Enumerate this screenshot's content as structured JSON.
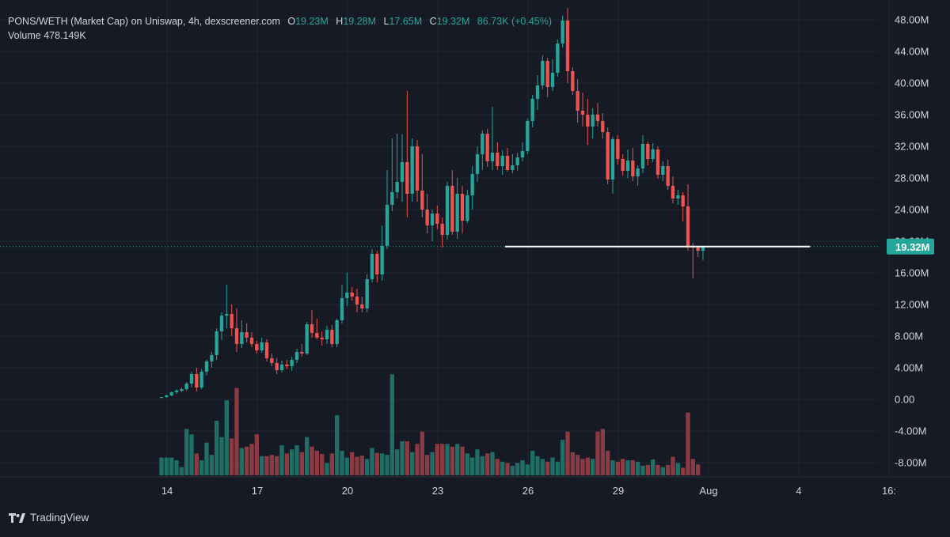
{
  "legend": {
    "symbol": "PONS/WETH (Market Cap) on Uniswap, 4h, dexscreener.com",
    "o_label": "O",
    "o_value": "19.23M",
    "h_label": "H",
    "h_value": "19.28M",
    "l_label": "L",
    "l_value": "17.65M",
    "c_label": "C",
    "c_value": "19.32M",
    "change": "86.73K (+0.45%)",
    "volume_label": "Volume",
    "volume_value": "478.149K"
  },
  "brand": {
    "name": "TradingView",
    "icon": "tradingview-logo-icon"
  },
  "colors": {
    "background": "#161a25",
    "up": "#26a69a",
    "down": "#ef5350",
    "up_volume": "#1f6f67",
    "down_volume": "#8c3a44",
    "grid": "#22262f",
    "axis_text": "#d1d4dc",
    "price_badge": "#26a69a"
  },
  "price_line": {
    "label": "19.32M",
    "value": 19.32
  },
  "chart_data": {
    "type": "candlestick",
    "interval": "4h",
    "y_unit": "M",
    "ylim": [
      -10,
      49.5
    ],
    "y_ticks": [
      "48.00M",
      "44.00M",
      "40.00M",
      "36.00M",
      "32.00M",
      "28.00M",
      "24.00M",
      "20.00M",
      "16.00M",
      "12.00M",
      "8.00M",
      "4.00M",
      "0.00",
      "-4.00M",
      "-8.00M"
    ],
    "y_tick_values": [
      48,
      44,
      40,
      36,
      32,
      28,
      24,
      20,
      16,
      12,
      8,
      4,
      0,
      -4,
      -8
    ],
    "x_ticks": [
      "14",
      "17",
      "20",
      "23",
      "26",
      "29",
      "Aug",
      "4",
      "16:"
    ],
    "x_tick_positions": [
      14,
      17,
      20,
      23,
      26,
      29,
      32,
      35,
      38
    ],
    "x_start_day": 14,
    "candles_per_day": 6,
    "grid": true,
    "horizontal_level": {
      "value": 19.32,
      "from_index": 69,
      "to_index": 112
    },
    "candles": [
      [
        0.2,
        0.3,
        0.1,
        0.3
      ],
      [
        0.3,
        0.6,
        0.2,
        0.5
      ],
      [
        0.5,
        1.0,
        0.4,
        0.9
      ],
      [
        0.9,
        1.3,
        0.7,
        1.1
      ],
      [
        1.1,
        1.5,
        0.9,
        1.3
      ],
      [
        1.3,
        2.2,
        1.1,
        2.0
      ],
      [
        2.0,
        3.5,
        1.5,
        3.2
      ],
      [
        3.2,
        4.0,
        1.0,
        1.5
      ],
      [
        1.5,
        3.8,
        1.3,
        3.5
      ],
      [
        3.5,
        5.0,
        3.0,
        4.8
      ],
      [
        4.8,
        6.0,
        4.0,
        5.6
      ],
      [
        5.6,
        9.0,
        5.0,
        8.6
      ],
      [
        8.6,
        11.0,
        7.5,
        10.6
      ],
      [
        10.6,
        14.5,
        9.0,
        10.8
      ],
      [
        10.8,
        12.0,
        8.0,
        9.0
      ],
      [
        9.0,
        11.5,
        6.0,
        7.0
      ],
      [
        7.0,
        10.0,
        6.5,
        8.5
      ],
      [
        8.5,
        9.6,
        7.2,
        7.8
      ],
      [
        7.8,
        8.5,
        6.6,
        7.0
      ],
      [
        7.0,
        7.4,
        5.8,
        6.2
      ],
      [
        6.2,
        7.8,
        5.9,
        7.2
      ],
      [
        7.2,
        7.6,
        4.8,
        5.2
      ],
      [
        5.2,
        5.8,
        4.2,
        4.6
      ],
      [
        4.6,
        5.2,
        3.2,
        3.7
      ],
      [
        3.7,
        4.9,
        3.4,
        4.4
      ],
      [
        4.4,
        5.0,
        3.8,
        4.2
      ],
      [
        4.2,
        5.4,
        3.6,
        5.0
      ],
      [
        5.0,
        6.4,
        4.6,
        6.0
      ],
      [
        6.0,
        7.0,
        5.4,
        5.8
      ],
      [
        5.8,
        9.8,
        5.6,
        9.5
      ],
      [
        9.5,
        11.3,
        7.8,
        8.4
      ],
      [
        8.4,
        10.2,
        7.6,
        7.8
      ],
      [
        7.8,
        8.6,
        6.8,
        7.6
      ],
      [
        7.6,
        9.3,
        7.0,
        8.8
      ],
      [
        8.8,
        9.4,
        6.6,
        7.0
      ],
      [
        7.0,
        10.2,
        6.6,
        10.0
      ],
      [
        10.0,
        14.5,
        9.6,
        12.8
      ],
      [
        12.8,
        16.0,
        11.8,
        13.5
      ],
      [
        13.5,
        14.2,
        12.5,
        13.0
      ],
      [
        13.0,
        14.0,
        11.0,
        12.0
      ],
      [
        12.0,
        13.0,
        11.0,
        11.5
      ],
      [
        11.5,
        15.8,
        11.0,
        15.2
      ],
      [
        15.2,
        19.0,
        14.8,
        18.4
      ],
      [
        18.4,
        18.8,
        14.8,
        15.8
      ],
      [
        15.8,
        22.0,
        15.0,
        19.4
      ],
      [
        19.4,
        29.0,
        19.0,
        24.6
      ],
      [
        24.6,
        33.0,
        23.8,
        26.2
      ],
      [
        26.2,
        33.6,
        25.4,
        27.5
      ],
      [
        27.5,
        33.5,
        25.0,
        30.0
      ],
      [
        30.0,
        39.0,
        23.0,
        26.0
      ],
      [
        26.0,
        33.0,
        25.0,
        32.0
      ],
      [
        32.0,
        32.8,
        25.0,
        26.4
      ],
      [
        26.4,
        31.0,
        23.0,
        24.0
      ],
      [
        24.0,
        26.0,
        21.0,
        22.0
      ],
      [
        22.0,
        24.0,
        20.0,
        23.5
      ],
      [
        23.5,
        24.5,
        21.5,
        22.2
      ],
      [
        22.2,
        23.0,
        19.2,
        20.8
      ],
      [
        20.8,
        27.5,
        20.2,
        27.0
      ],
      [
        27.0,
        29.0,
        20.8,
        21.2
      ],
      [
        21.2,
        28.0,
        20.3,
        26.0
      ],
      [
        26.0,
        27.0,
        21.0,
        22.6
      ],
      [
        22.6,
        26.5,
        22.3,
        25.8
      ],
      [
        25.8,
        29.5,
        24.0,
        28.5
      ],
      [
        28.5,
        32.0,
        27.5,
        31.0
      ],
      [
        31.0,
        34.0,
        29.0,
        33.6
      ],
      [
        33.6,
        34.2,
        29.4,
        30.1
      ],
      [
        30.1,
        37.0,
        29.0,
        31.2
      ],
      [
        31.2,
        32.5,
        29.0,
        29.5
      ],
      [
        29.5,
        31.5,
        28.4,
        30.8
      ],
      [
        30.8,
        31.8,
        28.8,
        29.0
      ],
      [
        29.0,
        31.0,
        28.6,
        29.6
      ],
      [
        29.6,
        31.2,
        28.9,
        30.6
      ],
      [
        30.6,
        32.5,
        30.1,
        31.4
      ],
      [
        31.4,
        35.5,
        31.0,
        35.2
      ],
      [
        35.2,
        38.5,
        34.4,
        38.0
      ],
      [
        38.0,
        41.0,
        36.6,
        39.7
      ],
      [
        39.7,
        43.5,
        39.2,
        42.8
      ],
      [
        42.8,
        43.2,
        38.2,
        39.5
      ],
      [
        39.5,
        43.0,
        39.0,
        41.3
      ],
      [
        41.3,
        45.5,
        40.8,
        45.0
      ],
      [
        45.0,
        48.5,
        44.5,
        47.9
      ],
      [
        47.9,
        49.5,
        40.0,
        41.5
      ],
      [
        41.5,
        42.0,
        38.5,
        39.0
      ],
      [
        39.0,
        40.5,
        35.0,
        36.5
      ],
      [
        36.5,
        38.8,
        34.5,
        36.0
      ],
      [
        36.0,
        38.0,
        32.2,
        34.5
      ],
      [
        34.5,
        36.8,
        33.0,
        36.0
      ],
      [
        36.0,
        37.5,
        34.5,
        35.2
      ],
      [
        35.2,
        36.2,
        33.0,
        33.8
      ],
      [
        33.8,
        34.4,
        27.2,
        27.8
      ],
      [
        27.8,
        33.2,
        26.0,
        32.9
      ],
      [
        32.9,
        33.4,
        29.7,
        30.4
      ],
      [
        30.4,
        31.0,
        28.3,
        28.9
      ],
      [
        28.9,
        31.6,
        28.0,
        30.2
      ],
      [
        30.2,
        31.8,
        27.6,
        28.2
      ],
      [
        28.2,
        29.6,
        27.0,
        29.2
      ],
      [
        29.2,
        33.4,
        28.6,
        32.3
      ],
      [
        32.3,
        32.6,
        29.6,
        30.4
      ],
      [
        30.4,
        32.4,
        30.0,
        31.6
      ],
      [
        31.6,
        32.0,
        27.9,
        28.4
      ],
      [
        28.4,
        30.1,
        27.6,
        29.5
      ],
      [
        29.5,
        30.3,
        26.5,
        27.0
      ],
      [
        27.0,
        28.2,
        24.8,
        25.4
      ],
      [
        25.4,
        26.5,
        24.6,
        25.8
      ],
      [
        25.8,
        26.2,
        22.5,
        24.4
      ],
      [
        24.4,
        27.2,
        18.8,
        19.3
      ],
      [
        19.3,
        19.8,
        15.3,
        19.2
      ],
      [
        19.2,
        19.4,
        18.0,
        18.8
      ],
      [
        18.8,
        19.3,
        17.6,
        19.3
      ]
    ],
    "volume": [
      6.5,
      6.5,
      6.5,
      5.5,
      3.0,
      17.0,
      15.0,
      8.0,
      5.5,
      12.0,
      7.5,
      20.0,
      14.0,
      27.5,
      13.5,
      32.0,
      10.0,
      10.5,
      11.5,
      15.0,
      7.0,
      7.0,
      7.5,
      7.0,
      11.0,
      8.0,
      9.5,
      11.0,
      8.5,
      14.0,
      10.5,
      9.0,
      7.8,
      4.5,
      8.0,
      22.0,
      9.0,
      6.5,
      8.5,
      6.8,
      7.2,
      6.0,
      10.0,
      8.2,
      8.0,
      7.5,
      37.0,
      9.5,
      12.5,
      12.5,
      8.5,
      11.5,
      16.0,
      7.5,
      8.5,
      11.5,
      11.5,
      11.5,
      10.5,
      11.5,
      10.5,
      8.0,
      6.5,
      9.5,
      7.0,
      8.0,
      8.5,
      6.0,
      5.0,
      4.5,
      3.5,
      4.5,
      5.5,
      4.0,
      9.0,
      7.0,
      6.0,
      5.0,
      6.5,
      5.0,
      13.0,
      16.0,
      8.5,
      7.5,
      6.0,
      6.5,
      6.0,
      16.0,
      17.0,
      9.0,
      5.5,
      5.0,
      6.0,
      5.5,
      5.5,
      5.0,
      3.5,
      3.8,
      5.8,
      3.8,
      3.0,
      3.8,
      6.8,
      4.5,
      2.8,
      23.0,
      6.0,
      4.0
    ]
  }
}
